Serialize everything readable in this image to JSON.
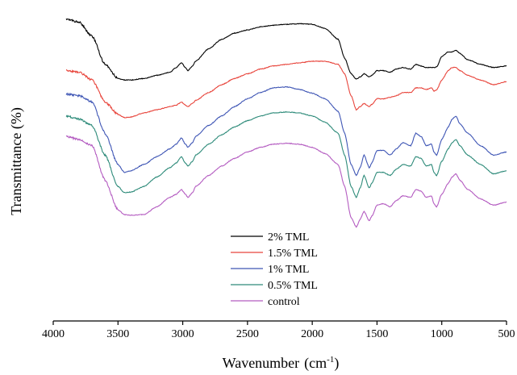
{
  "chart_data": {
    "type": "line",
    "title": "",
    "xlabel": "Wavenumber",
    "xlabel_unit": "cm",
    "xlabel_unit_exp": "-1",
    "ylabel": "Transmittance (%)",
    "x_reversed": true,
    "xlim": [
      4000,
      500
    ],
    "xticks": [
      "4000",
      "3500",
      "3000",
      "2500",
      "2000",
      "1500",
      "1000",
      "500"
    ],
    "y_ticks_shown": false,
    "legend_position": "center-bottom",
    "series": [
      {
        "name": "2% TML",
        "color": "#000000",
        "points": [
          [
            3900,
            0.965
          ],
          [
            3800,
            0.955
          ],
          [
            3700,
            0.91
          ],
          [
            3600,
            0.82
          ],
          [
            3500,
            0.775
          ],
          [
            3450,
            0.77
          ],
          [
            3400,
            0.77
          ],
          [
            3300,
            0.775
          ],
          [
            3200,
            0.785
          ],
          [
            3100,
            0.795
          ],
          [
            3050,
            0.81
          ],
          [
            3010,
            0.825
          ],
          [
            2980,
            0.81
          ],
          [
            2960,
            0.8
          ],
          [
            2925,
            0.815
          ],
          [
            2900,
            0.83
          ],
          [
            2800,
            0.87
          ],
          [
            2700,
            0.9
          ],
          [
            2600,
            0.92
          ],
          [
            2500,
            0.93
          ],
          [
            2400,
            0.94
          ],
          [
            2300,
            0.945
          ],
          [
            2200,
            0.948
          ],
          [
            2100,
            0.95
          ],
          [
            2000,
            0.948
          ],
          [
            1900,
            0.935
          ],
          [
            1800,
            0.9
          ],
          [
            1750,
            0.84
          ],
          [
            1700,
            0.79
          ],
          [
            1660,
            0.773
          ],
          [
            1630,
            0.78
          ],
          [
            1600,
            0.79
          ],
          [
            1560,
            0.78
          ],
          [
            1540,
            0.785
          ],
          [
            1500,
            0.8
          ],
          [
            1450,
            0.8
          ],
          [
            1400,
            0.795
          ],
          [
            1350,
            0.805
          ],
          [
            1300,
            0.81
          ],
          [
            1240,
            0.805
          ],
          [
            1200,
            0.82
          ],
          [
            1160,
            0.815
          ],
          [
            1120,
            0.81
          ],
          [
            1080,
            0.81
          ],
          [
            1060,
            0.81
          ],
          [
            1040,
            0.812
          ],
          [
            1000,
            0.845
          ],
          [
            950,
            0.86
          ],
          [
            920,
            0.86
          ],
          [
            890,
            0.865
          ],
          [
            860,
            0.855
          ],
          [
            800,
            0.835
          ],
          [
            700,
            0.82
          ],
          [
            600,
            0.81
          ],
          [
            500,
            0.815
          ]
        ]
      },
      {
        "name": "1.5% TML",
        "color": "#e8453c",
        "points": [
          [
            3900,
            0.8
          ],
          [
            3800,
            0.795
          ],
          [
            3700,
            0.77
          ],
          [
            3600,
            0.7
          ],
          [
            3500,
            0.66
          ],
          [
            3450,
            0.65
          ],
          [
            3400,
            0.652
          ],
          [
            3300,
            0.665
          ],
          [
            3200,
            0.675
          ],
          [
            3100,
            0.685
          ],
          [
            3050,
            0.69
          ],
          [
            3010,
            0.7
          ],
          [
            2980,
            0.69
          ],
          [
            2960,
            0.685
          ],
          [
            2925,
            0.695
          ],
          [
            2900,
            0.705
          ],
          [
            2800,
            0.73
          ],
          [
            2700,
            0.755
          ],
          [
            2600,
            0.775
          ],
          [
            2500,
            0.79
          ],
          [
            2400,
            0.805
          ],
          [
            2300,
            0.815
          ],
          [
            2200,
            0.82
          ],
          [
            2100,
            0.825
          ],
          [
            2000,
            0.83
          ],
          [
            1900,
            0.83
          ],
          [
            1800,
            0.82
          ],
          [
            1750,
            0.79
          ],
          [
            1700,
            0.72
          ],
          [
            1660,
            0.675
          ],
          [
            1630,
            0.685
          ],
          [
            1600,
            0.695
          ],
          [
            1560,
            0.685
          ],
          [
            1540,
            0.692
          ],
          [
            1500,
            0.71
          ],
          [
            1450,
            0.71
          ],
          [
            1400,
            0.715
          ],
          [
            1350,
            0.72
          ],
          [
            1300,
            0.73
          ],
          [
            1240,
            0.73
          ],
          [
            1200,
            0.745
          ],
          [
            1160,
            0.745
          ],
          [
            1120,
            0.74
          ],
          [
            1080,
            0.745
          ],
          [
            1060,
            0.735
          ],
          [
            1040,
            0.738
          ],
          [
            1000,
            0.77
          ],
          [
            950,
            0.8
          ],
          [
            920,
            0.81
          ],
          [
            890,
            0.81
          ],
          [
            860,
            0.8
          ],
          [
            800,
            0.785
          ],
          [
            700,
            0.77
          ],
          [
            600,
            0.755
          ],
          [
            500,
            0.765
          ]
        ]
      },
      {
        "name": "1% TML",
        "color": "#3f56b5",
        "points": [
          [
            3900,
            0.725
          ],
          [
            3800,
            0.72
          ],
          [
            3700,
            0.7
          ],
          [
            3600,
            0.6
          ],
          [
            3500,
            0.5
          ],
          [
            3450,
            0.475
          ],
          [
            3400,
            0.48
          ],
          [
            3300,
            0.5
          ],
          [
            3200,
            0.525
          ],
          [
            3100,
            0.55
          ],
          [
            3050,
            0.565
          ],
          [
            3010,
            0.585
          ],
          [
            2980,
            0.565
          ],
          [
            2960,
            0.555
          ],
          [
            2925,
            0.57
          ],
          [
            2900,
            0.59
          ],
          [
            2800,
            0.625
          ],
          [
            2700,
            0.655
          ],
          [
            2600,
            0.685
          ],
          [
            2500,
            0.71
          ],
          [
            2400,
            0.73
          ],
          [
            2300,
            0.745
          ],
          [
            2200,
            0.748
          ],
          [
            2100,
            0.74
          ],
          [
            2000,
            0.728
          ],
          [
            1900,
            0.71
          ],
          [
            1800,
            0.67
          ],
          [
            1750,
            0.6
          ],
          [
            1700,
            0.5
          ],
          [
            1660,
            0.465
          ],
          [
            1630,
            0.49
          ],
          [
            1600,
            0.53
          ],
          [
            1560,
            0.49
          ],
          [
            1540,
            0.505
          ],
          [
            1500,
            0.545
          ],
          [
            1450,
            0.545
          ],
          [
            1400,
            0.53
          ],
          [
            1350,
            0.55
          ],
          [
            1300,
            0.57
          ],
          [
            1240,
            0.56
          ],
          [
            1200,
            0.6
          ],
          [
            1160,
            0.59
          ],
          [
            1120,
            0.56
          ],
          [
            1080,
            0.565
          ],
          [
            1060,
            0.54
          ],
          [
            1040,
            0.53
          ],
          [
            1000,
            0.58
          ],
          [
            950,
            0.62
          ],
          [
            920,
            0.645
          ],
          [
            890,
            0.655
          ],
          [
            860,
            0.63
          ],
          [
            800,
            0.6
          ],
          [
            700,
            0.56
          ],
          [
            600,
            0.53
          ],
          [
            500,
            0.54
          ]
        ]
      },
      {
        "name": "0.5% TML",
        "color": "#2e8b7a",
        "points": [
          [
            3900,
            0.655
          ],
          [
            3800,
            0.645
          ],
          [
            3700,
            0.625
          ],
          [
            3600,
            0.53
          ],
          [
            3500,
            0.43
          ],
          [
            3450,
            0.41
          ],
          [
            3400,
            0.412
          ],
          [
            3300,
            0.43
          ],
          [
            3200,
            0.46
          ],
          [
            3100,
            0.49
          ],
          [
            3050,
            0.505
          ],
          [
            3010,
            0.525
          ],
          [
            2980,
            0.505
          ],
          [
            2960,
            0.495
          ],
          [
            2925,
            0.51
          ],
          [
            2900,
            0.53
          ],
          [
            2800,
            0.565
          ],
          [
            2700,
            0.595
          ],
          [
            2600,
            0.62
          ],
          [
            2500,
            0.64
          ],
          [
            2400,
            0.655
          ],
          [
            2300,
            0.665
          ],
          [
            2200,
            0.668
          ],
          [
            2100,
            0.665
          ],
          [
            2000,
            0.655
          ],
          [
            1900,
            0.635
          ],
          [
            1800,
            0.6
          ],
          [
            1750,
            0.53
          ],
          [
            1700,
            0.43
          ],
          [
            1660,
            0.395
          ],
          [
            1630,
            0.425
          ],
          [
            1600,
            0.465
          ],
          [
            1560,
            0.425
          ],
          [
            1540,
            0.44
          ],
          [
            1500,
            0.475
          ],
          [
            1450,
            0.475
          ],
          [
            1400,
            0.465
          ],
          [
            1350,
            0.485
          ],
          [
            1300,
            0.5
          ],
          [
            1240,
            0.495
          ],
          [
            1200,
            0.525
          ],
          [
            1160,
            0.52
          ],
          [
            1120,
            0.495
          ],
          [
            1080,
            0.5
          ],
          [
            1060,
            0.475
          ],
          [
            1040,
            0.465
          ],
          [
            1000,
            0.51
          ],
          [
            950,
            0.55
          ],
          [
            920,
            0.57
          ],
          [
            890,
            0.58
          ],
          [
            860,
            0.56
          ],
          [
            800,
            0.53
          ],
          [
            700,
            0.5
          ],
          [
            600,
            0.47
          ],
          [
            500,
            0.48
          ]
        ]
      },
      {
        "name": "control",
        "color": "#b45cc1",
        "points": [
          [
            3900,
            0.59
          ],
          [
            3800,
            0.58
          ],
          [
            3700,
            0.56
          ],
          [
            3600,
            0.45
          ],
          [
            3500,
            0.355
          ],
          [
            3450,
            0.34
          ],
          [
            3400,
            0.338
          ],
          [
            3300,
            0.34
          ],
          [
            3200,
            0.365
          ],
          [
            3100,
            0.395
          ],
          [
            3050,
            0.405
          ],
          [
            3010,
            0.42
          ],
          [
            2980,
            0.405
          ],
          [
            2960,
            0.395
          ],
          [
            2925,
            0.41
          ],
          [
            2900,
            0.43
          ],
          [
            2800,
            0.465
          ],
          [
            2700,
            0.495
          ],
          [
            2600,
            0.52
          ],
          [
            2500,
            0.54
          ],
          [
            2400,
            0.555
          ],
          [
            2300,
            0.565
          ],
          [
            2200,
            0.568
          ],
          [
            2100,
            0.565
          ],
          [
            2000,
            0.555
          ],
          [
            1900,
            0.535
          ],
          [
            1800,
            0.5
          ],
          [
            1750,
            0.43
          ],
          [
            1700,
            0.33
          ],
          [
            1660,
            0.3
          ],
          [
            1630,
            0.325
          ],
          [
            1600,
            0.35
          ],
          [
            1560,
            0.32
          ],
          [
            1540,
            0.335
          ],
          [
            1500,
            0.37
          ],
          [
            1450,
            0.375
          ],
          [
            1400,
            0.365
          ],
          [
            1350,
            0.385
          ],
          [
            1300,
            0.4
          ],
          [
            1240,
            0.395
          ],
          [
            1200,
            0.42
          ],
          [
            1160,
            0.415
          ],
          [
            1120,
            0.395
          ],
          [
            1080,
            0.4
          ],
          [
            1060,
            0.375
          ],
          [
            1040,
            0.365
          ],
          [
            1000,
            0.405
          ],
          [
            950,
            0.44
          ],
          [
            920,
            0.46
          ],
          [
            890,
            0.47
          ],
          [
            860,
            0.45
          ],
          [
            800,
            0.42
          ],
          [
            700,
            0.39
          ],
          [
            600,
            0.37
          ],
          [
            500,
            0.38
          ]
        ]
      }
    ]
  }
}
